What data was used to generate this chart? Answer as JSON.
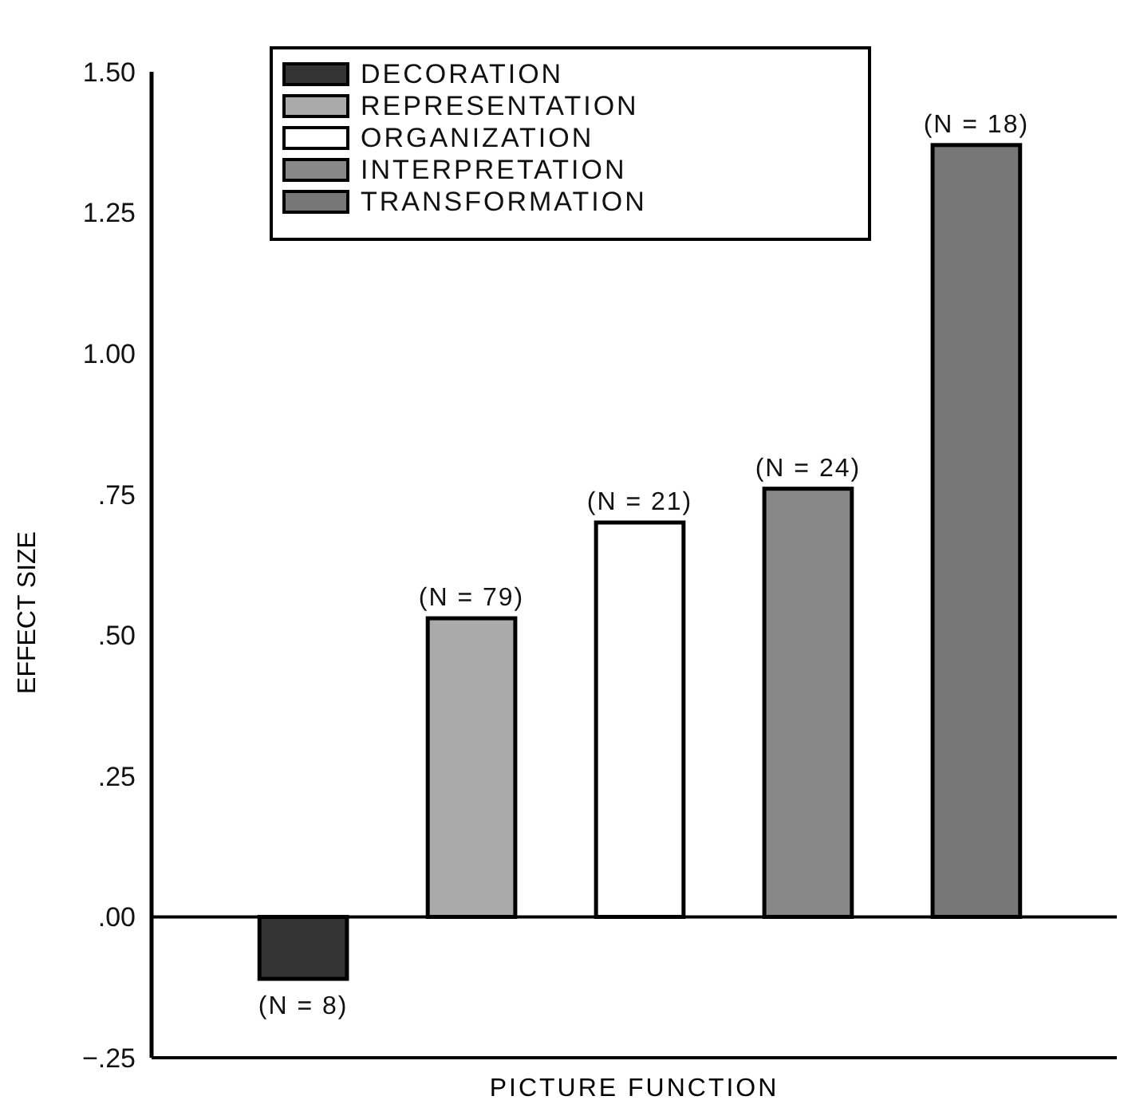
{
  "chart_data": {
    "type": "bar",
    "xlabel": "PICTURE FUNCTION",
    "ylabel": "EFFECT SIZE",
    "categories": [
      null,
      null,
      null,
      null,
      null
    ],
    "ylim": [
      -0.25,
      1.5
    ],
    "yticks": [
      {
        "value": 1.5,
        "label": "1.50"
      },
      {
        "value": 1.25,
        "label": "1.25"
      },
      {
        "value": 1,
        "label": "1.00"
      },
      {
        "value": 0.75,
        "label": ".75"
      },
      {
        "value": 0.5,
        "label": ".50"
      },
      {
        "value": 0.25,
        "label": ".25"
      },
      {
        "value": 0,
        "label": ".00"
      },
      {
        "value": -0.25,
        "label": "−.25"
      }
    ],
    "legend": "top left",
    "annotations": [
      "(N = 8)",
      "(N = 79)",
      "(N = 21)",
      "(N = 24)",
      "(N = 18)"
    ],
    "series": [
      {
        "name": "DECORATION",
        "color": "#333333",
        "values": [
          -0.11,
          null,
          null,
          null,
          null
        ]
      },
      {
        "name": "REPRESENTATION",
        "color": "#aaaaaa",
        "values": [
          null,
          0.53,
          null,
          null,
          null
        ]
      },
      {
        "name": "ORGANIZATION",
        "color": "#ffffff",
        "values": [
          null,
          null,
          0.7,
          null,
          null
        ]
      },
      {
        "name": "INTERPRETATION",
        "color": "#888888",
        "values": [
          null,
          null,
          null,
          0.76,
          null
        ]
      },
      {
        "name": "TRANSFORMATION",
        "color": "#777777",
        "values": [
          null,
          null,
          null,
          null,
          1.37
        ]
      }
    ]
  }
}
